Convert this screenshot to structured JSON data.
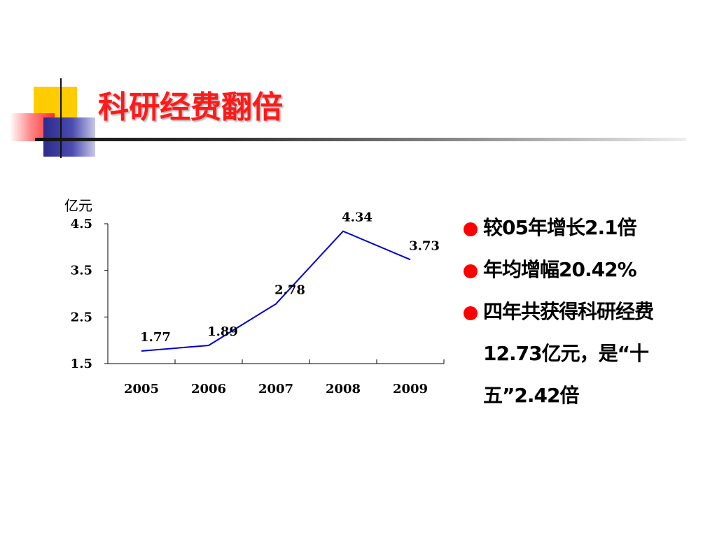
{
  "slide": {
    "title": "科研经费翻倍",
    "colors": {
      "title": "#ff1a1a",
      "line": "#0000cc",
      "bullet": "#ff0000"
    }
  },
  "chart_data": {
    "type": "line",
    "ylabel": "亿元",
    "categories": [
      "2005",
      "2006",
      "2007",
      "2008",
      "2009"
    ],
    "values": [
      1.77,
      1.89,
      2.78,
      4.34,
      3.73
    ],
    "data_labels": [
      "1.77",
      "1.89",
      "2.78",
      "4.34",
      "3.73"
    ],
    "yticks": [
      1.5,
      2.5,
      3.5,
      4.5
    ],
    "ytick_labels": [
      "1.5",
      "2.5",
      "3.5",
      "4.5"
    ],
    "ylim": [
      1.5,
      4.5
    ],
    "grid": false,
    "legend": "none"
  },
  "bullets": [
    {
      "text": "较05年增长2.1倍"
    },
    {
      "text": "年均增幅20.42%"
    },
    {
      "text": "四年共获得科研经费12.73亿元，是“十五”2.42倍"
    }
  ]
}
